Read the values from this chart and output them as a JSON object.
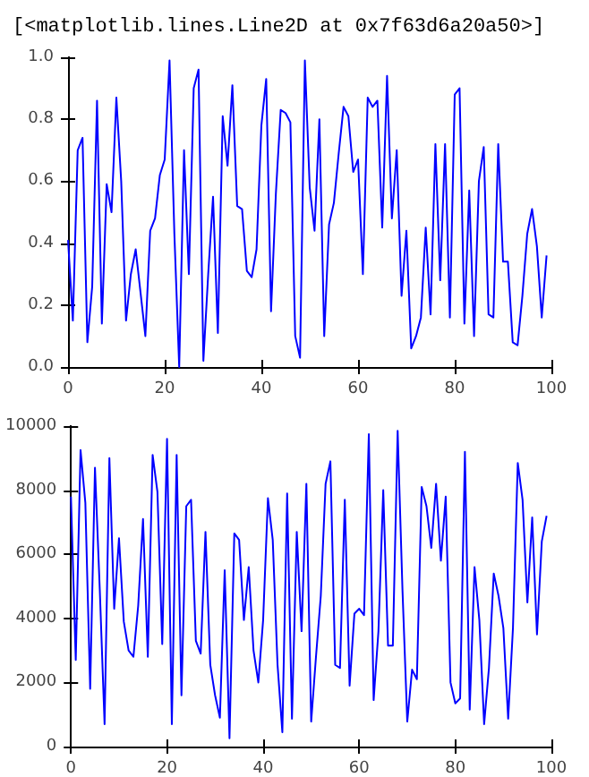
{
  "chart_data": [
    {
      "type": "line",
      "title": "[<matplotlib.lines.Line2D at 0x7f63d6a20a50>]",
      "x": [
        0,
        1,
        2,
        3,
        4,
        5,
        6,
        7,
        8,
        9,
        10,
        11,
        12,
        13,
        14,
        15,
        16,
        17,
        18,
        19,
        20,
        21,
        22,
        23,
        24,
        25,
        26,
        27,
        28,
        29,
        30,
        31,
        32,
        33,
        34,
        35,
        36,
        37,
        38,
        39,
        40,
        41,
        42,
        43,
        44,
        45,
        46,
        47,
        48,
        49,
        50,
        51,
        52,
        53,
        54,
        55,
        56,
        57,
        58,
        59,
        60,
        61,
        62,
        63,
        64,
        65,
        66,
        67,
        68,
        69,
        70,
        71,
        72,
        73,
        74,
        75,
        76,
        77,
        78,
        79,
        80,
        81,
        82,
        83,
        84,
        85,
        86,
        87,
        88,
        89,
        90,
        91,
        92,
        93,
        94,
        95,
        96,
        97,
        98,
        99
      ],
      "series": [
        {
          "color": "#0000ff",
          "values": [
            0.41,
            0.15,
            0.7,
            0.74,
            0.08,
            0.26,
            0.86,
            0.14,
            0.59,
            0.5,
            0.87,
            0.6,
            0.15,
            0.3,
            0.38,
            0.24,
            0.1,
            0.44,
            0.48,
            0.62,
            0.67,
            0.99,
            0.43,
            0.0,
            0.7,
            0.3,
            0.9,
            0.96,
            0.02,
            0.3,
            0.55,
            0.11,
            0.81,
            0.65,
            0.91,
            0.52,
            0.51,
            0.31,
            0.29,
            0.38,
            0.78,
            0.93,
            0.18,
            0.56,
            0.83,
            0.82,
            0.79,
            0.1,
            0.03,
            0.99,
            0.58,
            0.44,
            0.8,
            0.1,
            0.46,
            0.53,
            0.69,
            0.84,
            0.81,
            0.63,
            0.67,
            0.3,
            0.87,
            0.84,
            0.86,
            0.45,
            0.94,
            0.48,
            0.7,
            0.23,
            0.44,
            0.06,
            0.1,
            0.16,
            0.45,
            0.17,
            0.72,
            0.28,
            0.72,
            0.16,
            0.88,
            0.9,
            0.14,
            0.57,
            0.1,
            0.6,
            0.71,
            0.17,
            0.16,
            0.72,
            0.34,
            0.34,
            0.08,
            0.07,
            0.23,
            0.43,
            0.51,
            0.39,
            0.16,
            0.36
          ]
        }
      ],
      "xlim": [
        0,
        100
      ],
      "xticks": [
        0,
        20,
        40,
        60,
        80,
        100
      ],
      "ylim": [
        0,
        1
      ],
      "yticks": [
        {
          "value": 0,
          "label": "0.0"
        },
        {
          "value": 0.2,
          "label": "0.2"
        },
        {
          "value": 0.4,
          "label": "0.4"
        },
        {
          "value": 0.6,
          "label": "0.6"
        },
        {
          "value": 0.8,
          "label": "0.8"
        },
        {
          "value": 1,
          "label": "1.0"
        }
      ]
    },
    {
      "type": "line",
      "x": [
        0,
        1,
        2,
        3,
        4,
        5,
        6,
        7,
        8,
        9,
        10,
        11,
        12,
        13,
        14,
        15,
        16,
        17,
        18,
        19,
        20,
        21,
        22,
        23,
        24,
        25,
        26,
        27,
        28,
        29,
        30,
        31,
        32,
        33,
        34,
        35,
        36,
        37,
        38,
        39,
        40,
        41,
        42,
        43,
        44,
        45,
        46,
        47,
        48,
        49,
        50,
        51,
        52,
        53,
        54,
        55,
        56,
        57,
        58,
        59,
        60,
        61,
        62,
        63,
        64,
        65,
        66,
        67,
        68,
        69,
        70,
        71,
        72,
        73,
        74,
        75,
        76,
        77,
        78,
        79,
        80,
        81,
        82,
        83,
        84,
        85,
        86,
        87,
        88,
        89,
        90,
        91,
        92,
        93,
        94,
        95,
        96,
        97,
        98,
        99
      ],
      "series": [
        {
          "color": "#0000ff",
          "values": [
            7800,
            2700,
            9250,
            7600,
            1800,
            8700,
            4900,
            700,
            9000,
            4300,
            6500,
            3900,
            3000,
            2800,
            4400,
            7100,
            2800,
            9100,
            7950,
            3200,
            9600,
            700,
            9100,
            1600,
            7500,
            7700,
            3300,
            2900,
            6700,
            2550,
            1600,
            900,
            5500,
            260,
            6650,
            6450,
            3950,
            5600,
            3000,
            2000,
            3950,
            7750,
            6450,
            2550,
            450,
            7900,
            870,
            6700,
            3600,
            8200,
            780,
            2800,
            4700,
            8200,
            8900,
            2550,
            2450,
            7700,
            1900,
            4150,
            4300,
            4100,
            9750,
            1450,
            3600,
            8000,
            3150,
            3150,
            9850,
            4900,
            780,
            2400,
            2100,
            8100,
            7500,
            6200,
            8200,
            5800,
            7800,
            2000,
            1350,
            1500,
            9200,
            1150,
            5600,
            3950,
            700,
            2450,
            5400,
            4700,
            3700,
            870,
            3700,
            8850,
            7700,
            4500,
            7150,
            3500,
            6400,
            7200
          ]
        }
      ],
      "xlim": [
        0,
        100
      ],
      "xticks": [
        0,
        20,
        40,
        60,
        80,
        100
      ],
      "ylim": [
        0,
        10000
      ],
      "yticks": [
        0,
        2000,
        4000,
        6000,
        8000,
        10000
      ]
    }
  ]
}
